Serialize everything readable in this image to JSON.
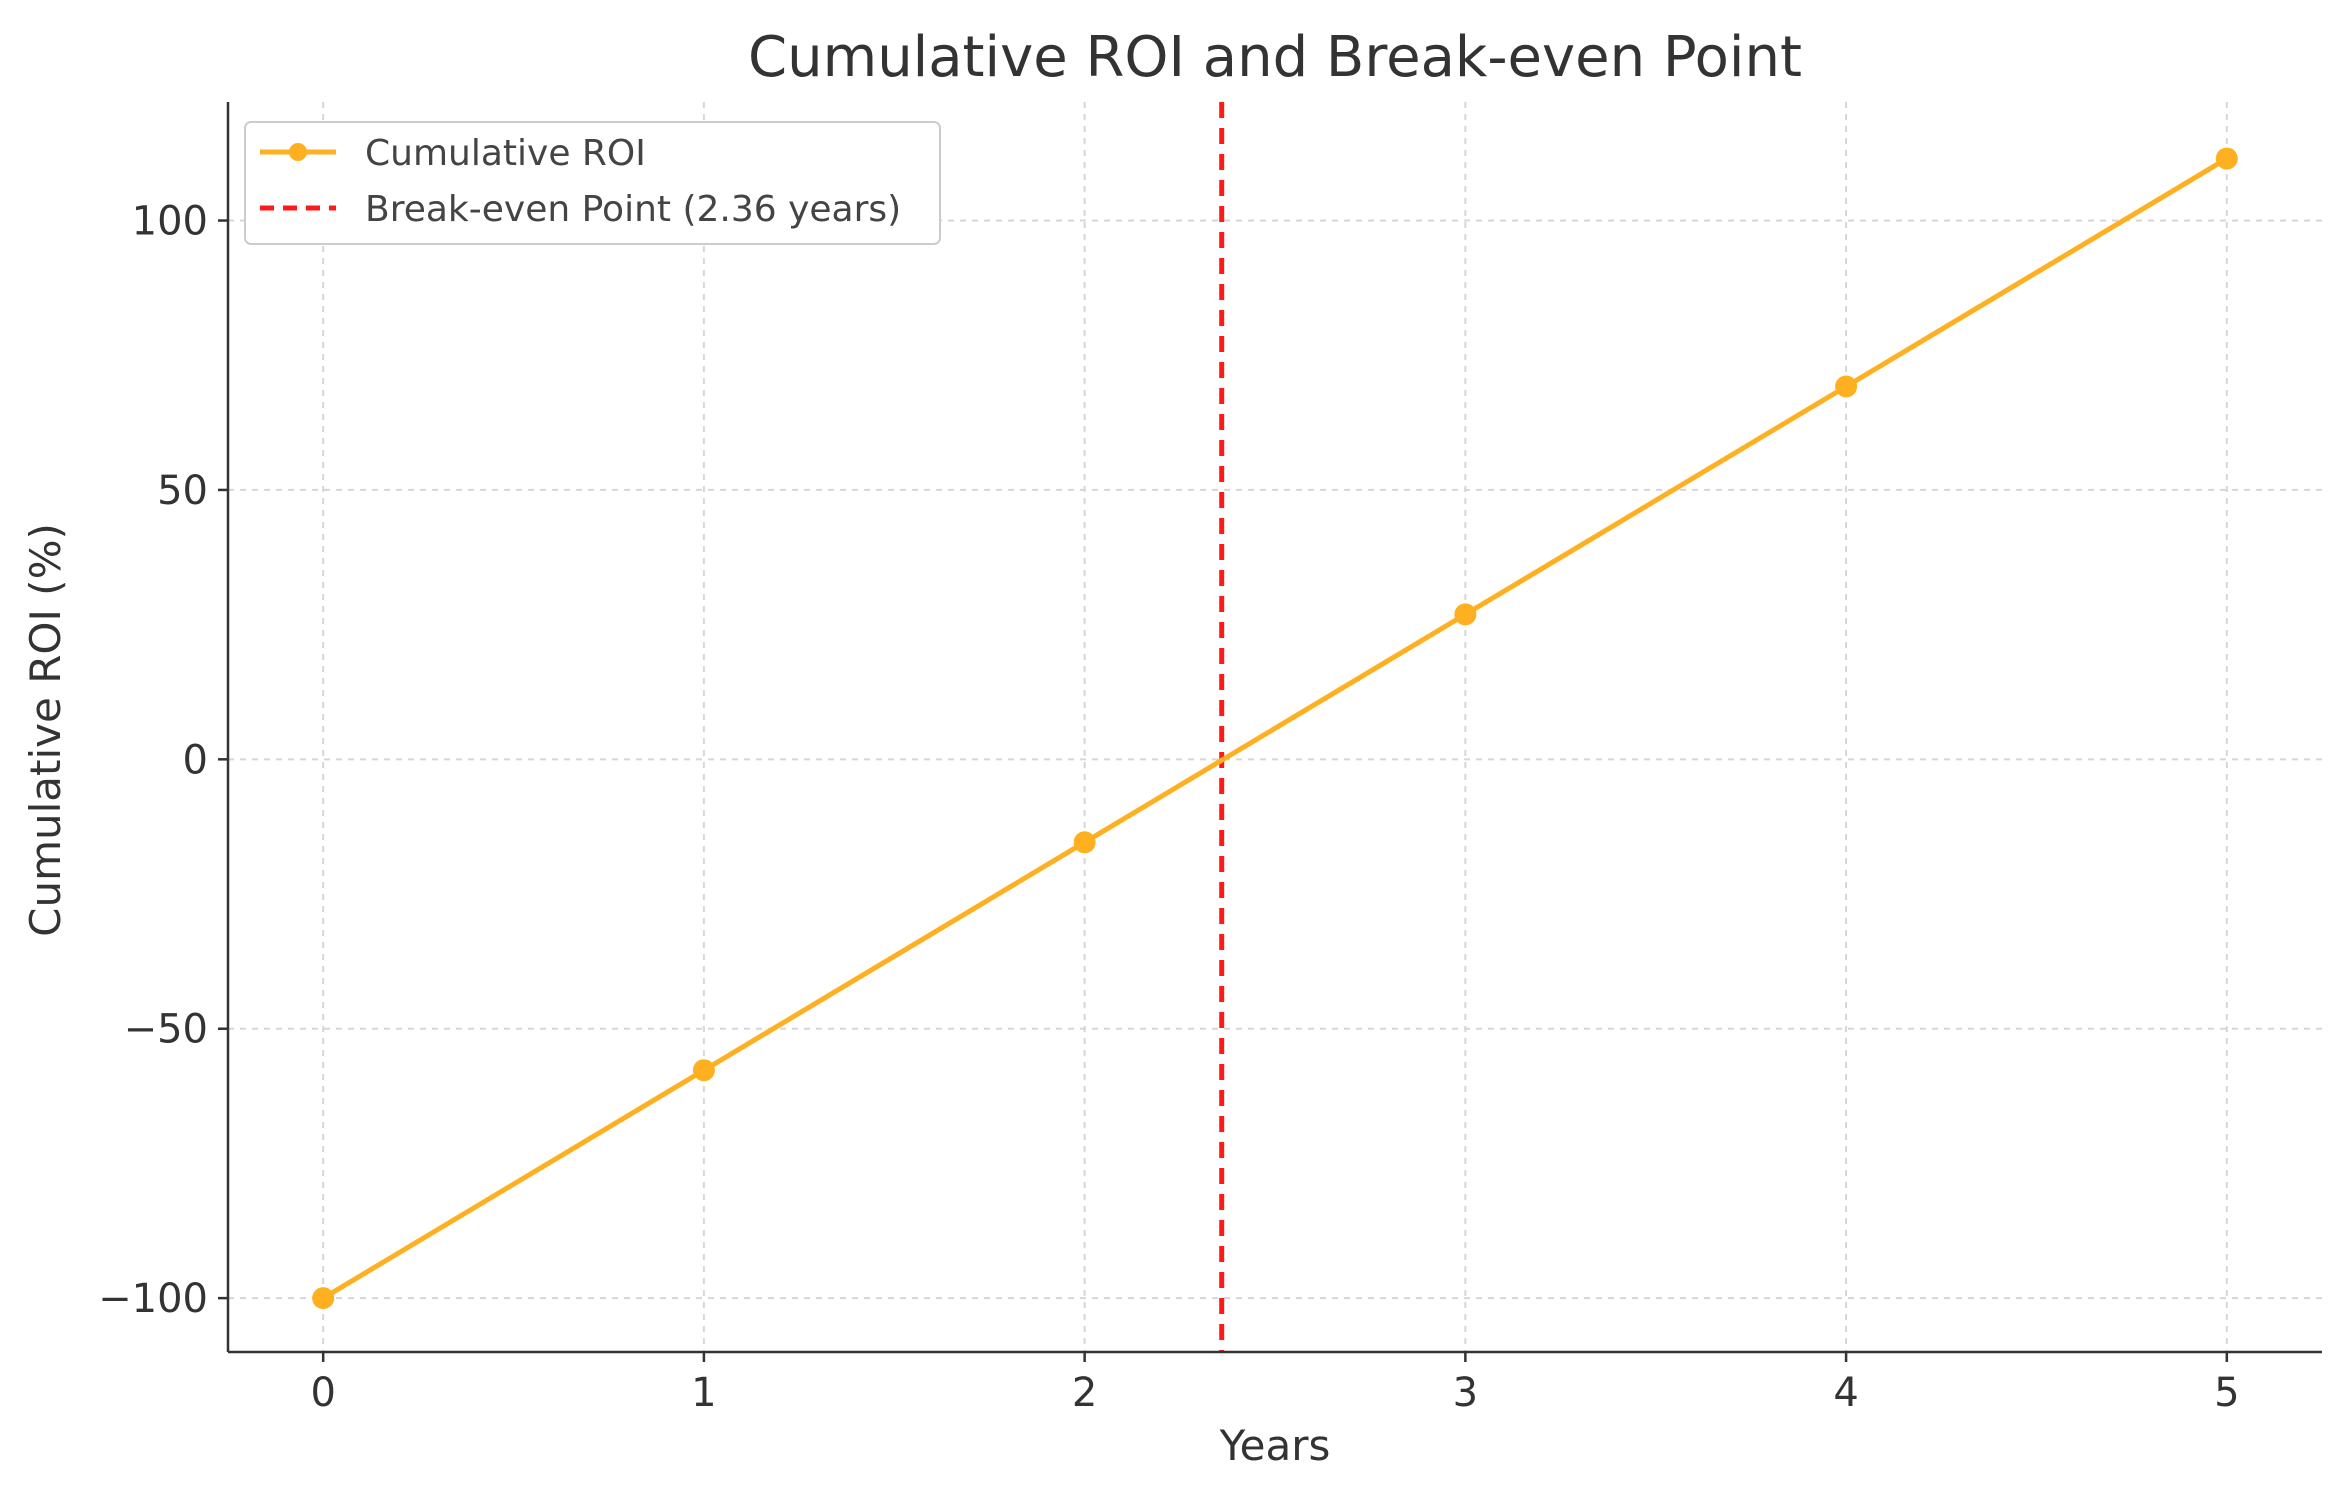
{
  "chart_data": {
    "type": "line",
    "title": "Cumulative ROI and Break-even Point",
    "xlabel": "Years",
    "ylabel": "Cumulative ROI (%)",
    "xlim": [
      -0.25,
      5.25
    ],
    "ylim": [
      -110,
      122
    ],
    "xticks": [
      0,
      1,
      2,
      3,
      4,
      5
    ],
    "xtick_labels": [
      "0",
      "1",
      "2",
      "3",
      "4",
      "5"
    ],
    "yticks": [
      -100,
      -50,
      0,
      50,
      100
    ],
    "ytick_labels": [
      "−100",
      "−50",
      "0",
      "50",
      "100"
    ],
    "grid": true,
    "legend_position": "top-left",
    "series": [
      {
        "name": "Cumulative ROI",
        "color": "#FFB020",
        "marker": "circle",
        "x": [
          0,
          1,
          2,
          3,
          4,
          5
        ],
        "y": [
          -100,
          -57.7,
          -15.4,
          26.9,
          69.2,
          111.5
        ]
      }
    ],
    "vlines": [
      {
        "name": "Break-even Point (2.36 years)",
        "x": 2.36,
        "color": "#FF1A1A",
        "style": "dashed"
      }
    ]
  }
}
